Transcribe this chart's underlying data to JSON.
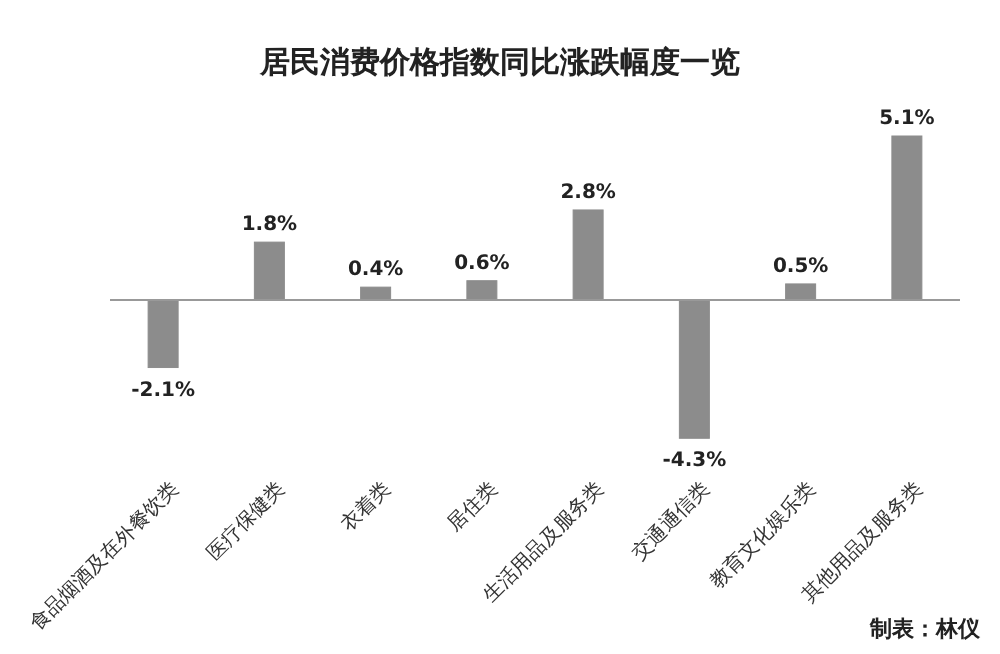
{
  "chart_data": {
    "type": "bar",
    "title": "居民消费价格指数同比涨跌幅度一览",
    "categories": [
      "食品烟酒及在外餐饮类",
      "医疗保健类",
      "衣着类",
      "居住类",
      "生活用品及服务类",
      "交通通信类",
      "教育文化娱乐类",
      "其他用品及服务类"
    ],
    "values": [
      -2.1,
      1.8,
      0.4,
      0.6,
      2.8,
      -4.3,
      0.5,
      5.1
    ],
    "value_labels": [
      "-2.1%",
      "1.8%",
      "0.4%",
      "0.6%",
      "2.8%",
      "-4.3%",
      "0.5%",
      "5.1%"
    ],
    "color": "#8c8c8c",
    "annotations": [
      "制表：林仪"
    ]
  }
}
